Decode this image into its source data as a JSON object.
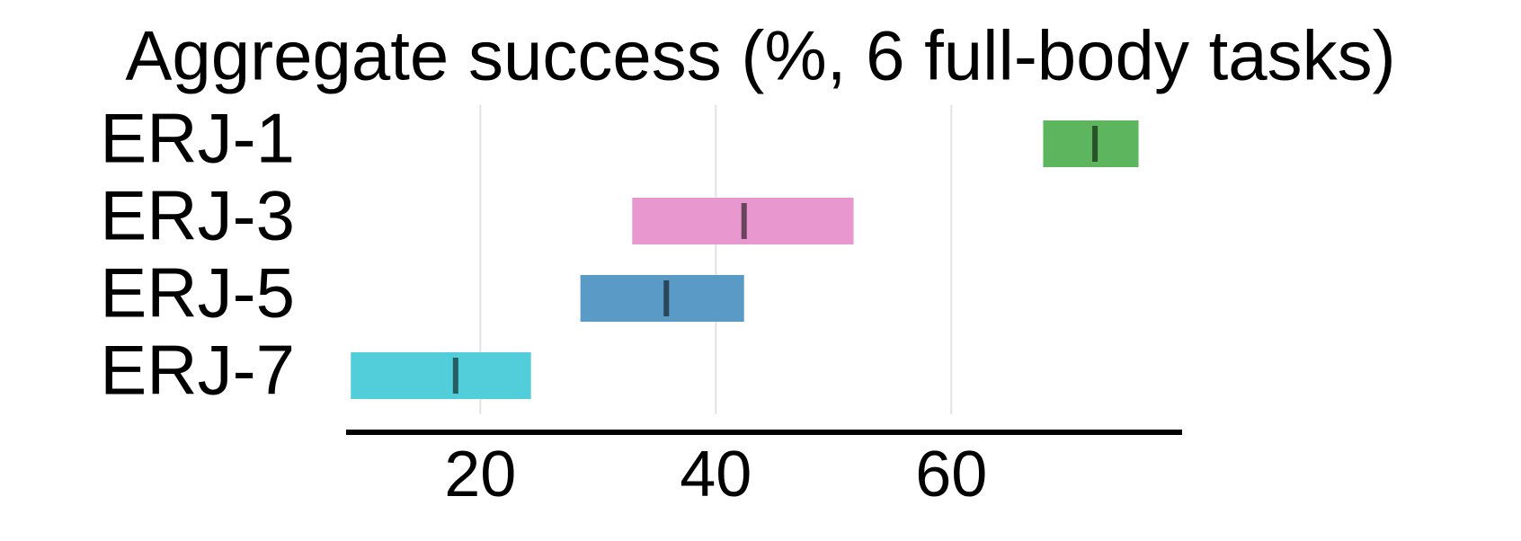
{
  "chart_data": {
    "type": "range",
    "title": "Aggregate success (%, 6 full-body tasks)",
    "categories": [
      "ERJ-1",
      "ERJ-3",
      "ERJ-5",
      "ERJ-7"
    ],
    "low": [
      67.8,
      32.9,
      28.5,
      9.0
    ],
    "high": [
      75.9,
      51.7,
      42.4,
      24.3
    ],
    "median": [
      72.2,
      42.4,
      35.8,
      17.9
    ],
    "colors": [
      "#5db55d",
      "#e897cf",
      "#5a9ac7",
      "#52cedb"
    ],
    "xlim": [
      8.6,
      79.6
    ],
    "xticks": [
      20,
      40,
      60
    ],
    "grid": true
  }
}
